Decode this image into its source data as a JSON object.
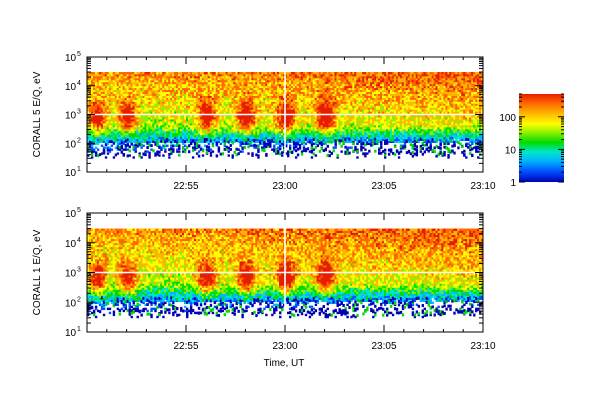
{
  "chart_data": [
    {
      "type": "heatmap",
      "ylabel": "CORALL 5 E/Q, eV",
      "xlabel": "",
      "x_ticks": [
        "22:55",
        "23:00",
        "23:05",
        "23:10"
      ],
      "x_range": [
        "22:50",
        "23:10"
      ],
      "y_ticks": [
        "10",
        "10",
        "10",
        "10",
        "10"
      ],
      "y_tick_exponents": [
        "1",
        "2",
        "3",
        "4",
        "5"
      ],
      "y_range": [
        10,
        100000
      ],
      "y_scale": "log",
      "energy_band_eV": [
        30,
        30000
      ],
      "reference_line_eV": 1000,
      "reference_line_time": "23:00",
      "intense_bursts_time": [
        "22:50.5",
        "22:52",
        "22:56",
        "22:58",
        "23:00",
        "23:02"
      ],
      "burst_peak_energy_eV": 800
    },
    {
      "type": "heatmap",
      "ylabel": "CORALL 1 E/Q, eV",
      "xlabel": "Time, UT",
      "x_ticks": [
        "22:55",
        "23:00",
        "23:05",
        "23:10"
      ],
      "x_range": [
        "22:50",
        "23:10"
      ],
      "y_ticks": [
        "10",
        "10",
        "10",
        "10",
        "10"
      ],
      "y_tick_exponents": [
        "1",
        "2",
        "3",
        "4",
        "5"
      ],
      "y_range": [
        10,
        100000
      ],
      "y_scale": "log",
      "energy_band_eV": [
        30,
        30000
      ],
      "reference_line_eV": 1000,
      "reference_line_time": "23:00",
      "intense_bursts_time": [
        "22:50.5",
        "22:52",
        "22:56",
        "22:58",
        "23:00",
        "23:02"
      ],
      "burst_peak_energy_eV": 600
    }
  ],
  "colorbar": {
    "scale": "log",
    "range": [
      1,
      500
    ],
    "tick_labels": [
      "1",
      "10",
      "100"
    ],
    "tick_values": [
      1,
      10,
      100
    ],
    "colors": [
      "#0000b4",
      "#0050ff",
      "#00b4ff",
      "#00e6c8",
      "#00dc00",
      "#8cf000",
      "#ffff00",
      "#ffb400",
      "#ff6400",
      "#e61e00"
    ]
  }
}
